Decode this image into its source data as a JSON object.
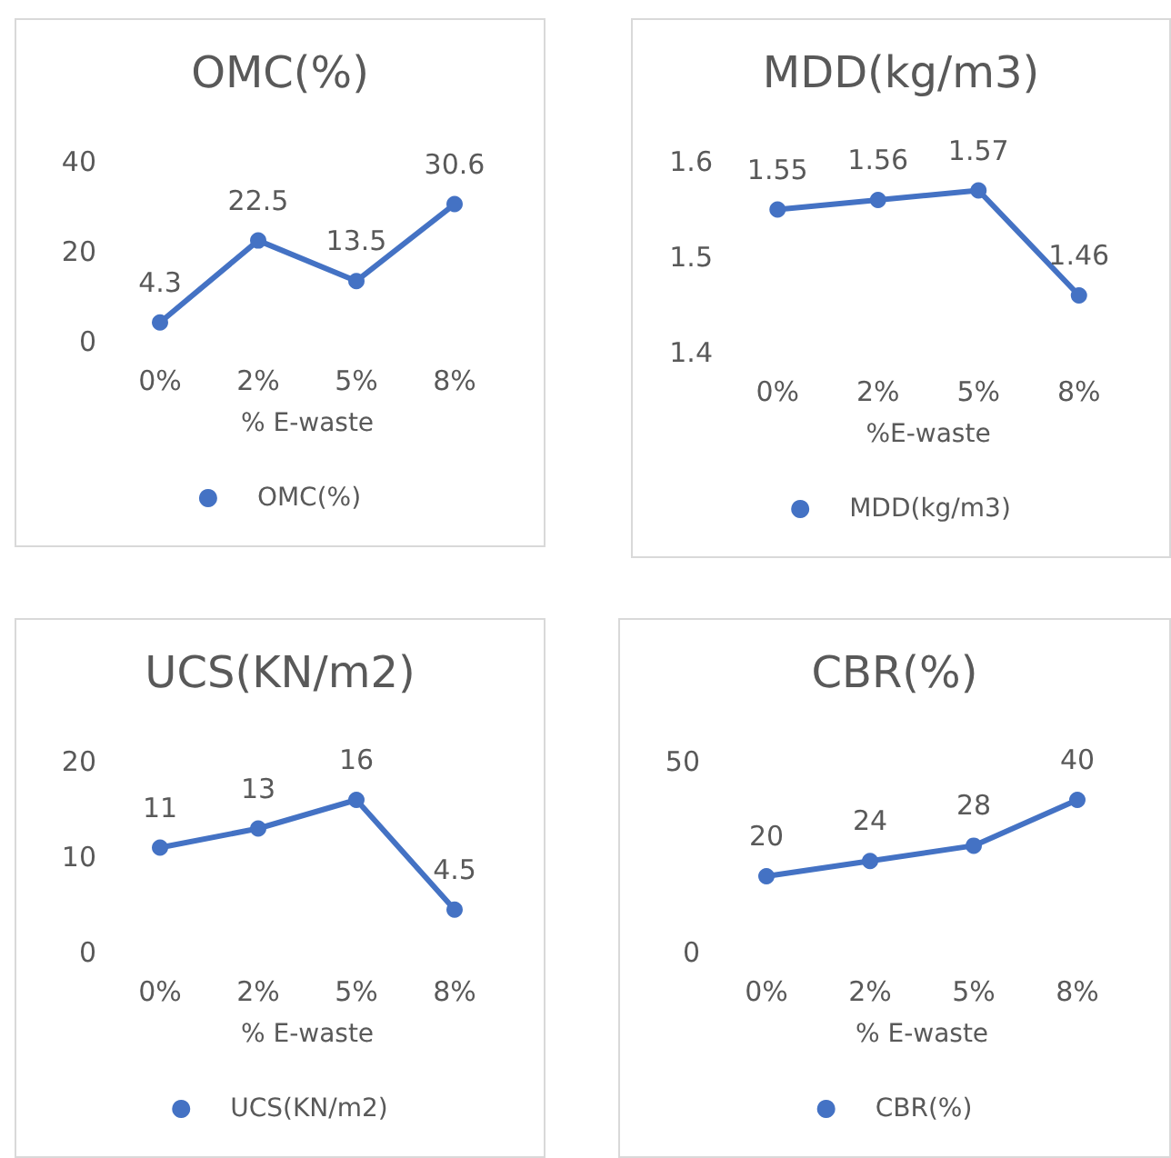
{
  "chart_data": [
    {
      "type": "line",
      "title": "OMC(%)",
      "xlabel": "% E-waste",
      "categories": [
        "0%",
        "2%",
        "5%",
        "8%"
      ],
      "series": [
        {
          "name": "OMC(%)",
          "color": "#4472c4",
          "values": [
            4.3,
            22.5,
            13.5,
            30.6
          ]
        }
      ],
      "ylim": [
        0,
        40
      ],
      "yticks": [
        0,
        20,
        40
      ],
      "data_labels": true,
      "legend": "bottom",
      "marker": "circle",
      "grid": false
    },
    {
      "type": "line",
      "title": "MDD(kg/m3)",
      "xlabel": "%E-waste",
      "categories": [
        "0%",
        "2%",
        "5%",
        "8%"
      ],
      "series": [
        {
          "name": "MDD(kg/m3)",
          "color": "#4472c4",
          "values": [
            1.55,
            1.56,
            1.57,
            1.46
          ]
        }
      ],
      "ylim": [
        1.4,
        1.6
      ],
      "yticks": [
        1.4,
        1.5,
        1.6
      ],
      "data_labels": true,
      "legend": "bottom",
      "marker": "circle",
      "grid": false
    },
    {
      "type": "line",
      "title": "UCS(KN/m2)",
      "xlabel": "% E-waste",
      "categories": [
        "0%",
        "2%",
        "5%",
        "8%"
      ],
      "series": [
        {
          "name": "UCS(KN/m2)",
          "color": "#4472c4",
          "values": [
            11,
            13,
            16,
            4.5
          ]
        }
      ],
      "ylim": [
        0,
        20
      ],
      "yticks": [
        0,
        10,
        20
      ],
      "data_labels": true,
      "legend": "bottom",
      "marker": "circle",
      "grid": false
    },
    {
      "type": "line",
      "title": "CBR(%)",
      "xlabel": "% E-waste",
      "categories": [
        "0%",
        "2%",
        "5%",
        "8%"
      ],
      "series": [
        {
          "name": "CBR(%)",
          "color": "#4472c4",
          "values": [
            20,
            24,
            28,
            40
          ]
        }
      ],
      "ylim": [
        0,
        50
      ],
      "yticks": [
        0,
        50
      ],
      "data_labels": true,
      "legend": "bottom",
      "marker": "circle",
      "grid": false
    }
  ]
}
